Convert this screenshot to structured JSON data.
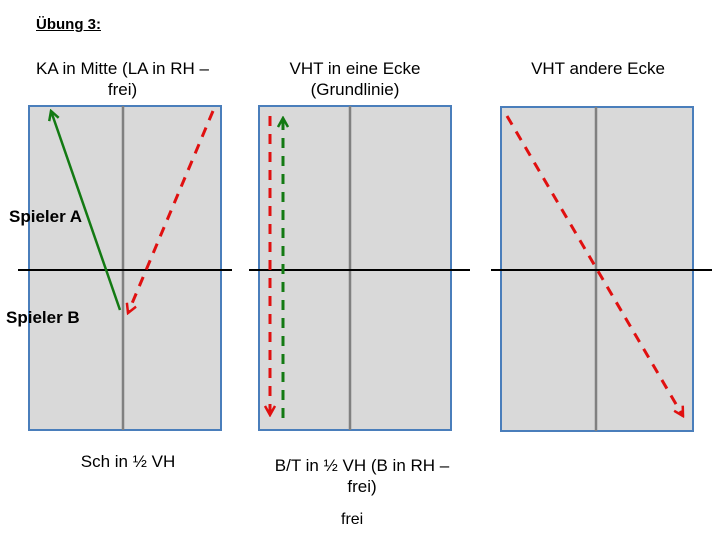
{
  "title": "Übung 3:",
  "panels": [
    {
      "heading": "KA in Mitte (LA in RH –\nfrei)",
      "footer": "Sch in ½ VH"
    },
    {
      "heading": "VHT in eine Ecke\n(Grundlinie)",
      "footer": "B/T in ½ VH (B in RH –\nfrei)"
    },
    {
      "heading": "VHT andere Ecke",
      "footer": ""
    }
  ],
  "players": {
    "a": "Spieler A",
    "b": "Spieler B"
  },
  "extra_note": "frei",
  "colors": {
    "court_fill": "#d9d9d9",
    "court_border": "#4a7ebb",
    "center_line": "#808080",
    "net": "#000000",
    "arrow_green": "#137a13",
    "arrow_red": "#e01010"
  }
}
